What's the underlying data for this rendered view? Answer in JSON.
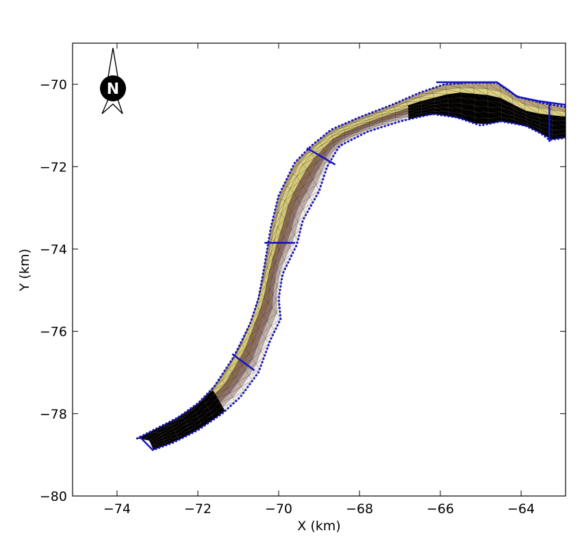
{
  "chart_data": {
    "type": "map",
    "xlabel": "X (km)",
    "ylabel": "Y (km)",
    "xlim": [
      -75.1,
      -62.9
    ],
    "ylim": [
      -80,
      -69
    ],
    "xticks": [
      -74,
      -72,
      -70,
      -68,
      -66,
      -64
    ],
    "yticks": [
      -70,
      -72,
      -74,
      -76,
      -78,
      -80
    ],
    "xtick_labels": [
      "−74",
      "−72",
      "−70",
      "−68",
      "−66",
      "−64"
    ],
    "ytick_labels": [
      "−70",
      "−72",
      "−74",
      "−76",
      "−78",
      "−80"
    ],
    "north_arrow_label": "N",
    "glacier_outline_left": [
      [
        -73.5,
        -78.6
      ],
      [
        -73.0,
        -78.35
      ],
      [
        -72.5,
        -78.1
      ],
      [
        -72.0,
        -77.75
      ],
      [
        -71.6,
        -77.35
      ],
      [
        -71.1,
        -76.6
      ],
      [
        -70.7,
        -75.8
      ],
      [
        -70.5,
        -75.2
      ],
      [
        -70.35,
        -74.4
      ],
      [
        -70.2,
        -73.5
      ],
      [
        -70.0,
        -72.7
      ],
      [
        -69.6,
        -71.9
      ],
      [
        -69.2,
        -71.5
      ],
      [
        -68.7,
        -71.1
      ],
      [
        -68.0,
        -70.8
      ],
      [
        -67.2,
        -70.5
      ],
      [
        -66.5,
        -70.2
      ],
      [
        -65.9,
        -70.0
      ],
      [
        -65.3,
        -69.96
      ],
      [
        -64.6,
        -69.96
      ],
      [
        -64.4,
        -70.1
      ],
      [
        -64.1,
        -70.3
      ],
      [
        -63.5,
        -70.45
      ],
      [
        -62.9,
        -70.55
      ]
    ],
    "glacier_outline_right": [
      [
        -62.9,
        -71.3
      ],
      [
        -63.3,
        -71.35
      ],
      [
        -63.5,
        -71.2
      ],
      [
        -63.9,
        -71.0
      ],
      [
        -64.5,
        -70.9
      ],
      [
        -65.0,
        -71.0
      ],
      [
        -65.6,
        -70.8
      ],
      [
        -66.2,
        -70.72
      ],
      [
        -67.0,
        -70.9
      ],
      [
        -67.8,
        -71.15
      ],
      [
        -68.5,
        -71.5
      ],
      [
        -68.8,
        -72.0
      ],
      [
        -69.0,
        -72.6
      ],
      [
        -69.4,
        -73.3
      ],
      [
        -69.55,
        -73.9
      ],
      [
        -69.9,
        -74.6
      ],
      [
        -70.0,
        -75.2
      ],
      [
        -69.95,
        -75.7
      ],
      [
        -70.2,
        -76.2
      ],
      [
        -70.5,
        -77.0
      ],
      [
        -70.95,
        -77.6
      ],
      [
        -71.4,
        -78.0
      ],
      [
        -72.0,
        -78.4
      ],
      [
        -72.6,
        -78.7
      ],
      [
        -73.1,
        -78.88
      ]
    ],
    "ice_centerline": [
      [
        -73.2,
        -78.65
      ],
      [
        -72.2,
        -78.0
      ],
      [
        -71.4,
        -77.2
      ],
      [
        -70.9,
        -76.3
      ],
      [
        -70.55,
        -75.4
      ],
      [
        -70.3,
        -74.5
      ],
      [
        -70.05,
        -73.6
      ],
      [
        -69.8,
        -72.7
      ],
      [
        -69.3,
        -71.8
      ],
      [
        -68.6,
        -71.2
      ],
      [
        -67.6,
        -70.8
      ],
      [
        -66.6,
        -70.45
      ],
      [
        -65.6,
        -70.2
      ],
      [
        -64.6,
        -70.3
      ],
      [
        -63.8,
        -70.7
      ],
      [
        -62.9,
        -70.8
      ]
    ],
    "transects": [
      {
        "from": [
          -69.3,
          -71.55
        ],
        "to": [
          -68.6,
          -71.95
        ]
      },
      {
        "from": [
          -70.35,
          -73.85
        ],
        "to": [
          -69.6,
          -73.85
        ]
      },
      {
        "from": [
          -71.15,
          -76.55
        ],
        "to": [
          -70.6,
          -76.95
        ]
      },
      {
        "from": [
          -63.3,
          -70.45
        ],
        "to": [
          -63.3,
          -71.4
        ]
      },
      {
        "from": [
          -73.45,
          -78.55
        ],
        "to": [
          -73.1,
          -78.9
        ]
      }
    ],
    "colors": {
      "boundary": "#1414c8",
      "mesh": "#3a3028",
      "ice_light": "#f2ee88",
      "ice_mid": "#a58b72",
      "ice_dark": "#6e4a40",
      "ice_green": "#20c060",
      "frame": "#000000"
    }
  }
}
